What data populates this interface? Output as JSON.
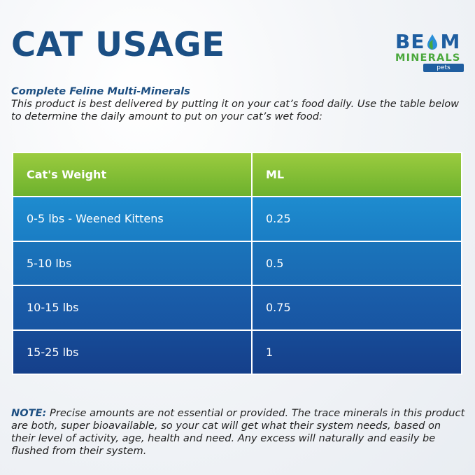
{
  "title": "CAT USAGE",
  "logo": {
    "top": "BEOM",
    "middle": "MINERALS",
    "sub": "pets"
  },
  "intro": {
    "subtitle": "Complete Feline Multi-Minerals",
    "body": "This product is best delivered by putting it on your cat’s food daily. Use the table below to determine the daily amount to put on your cat’s wet food:"
  },
  "table": {
    "headers": [
      "Cat's Weight",
      "ML"
    ],
    "rows": [
      [
        "0-5 lbs - Weened Kittens",
        "0.25"
      ],
      [
        "5-10 lbs",
        "0.5"
      ],
      [
        "10-15 lbs",
        "0.75"
      ],
      [
        "15-25 lbs",
        "1"
      ]
    ]
  },
  "note": {
    "label": "NOTE:",
    "body": " Precise amounts are not essential or provided. The trace minerals in this product are both, super bioavailable, so your cat will get what their system needs, based on their level of activity, age, health and need. Any excess will naturally and easily be flushed from their system."
  },
  "colors": {
    "title": "#1b4f84",
    "header_green": "#7fbf35",
    "row_blue_light": "#1e8ccf",
    "row_blue_dark": "#153f8a",
    "logo_blue": "#1f5ea0",
    "logo_green": "#4aa83c"
  }
}
